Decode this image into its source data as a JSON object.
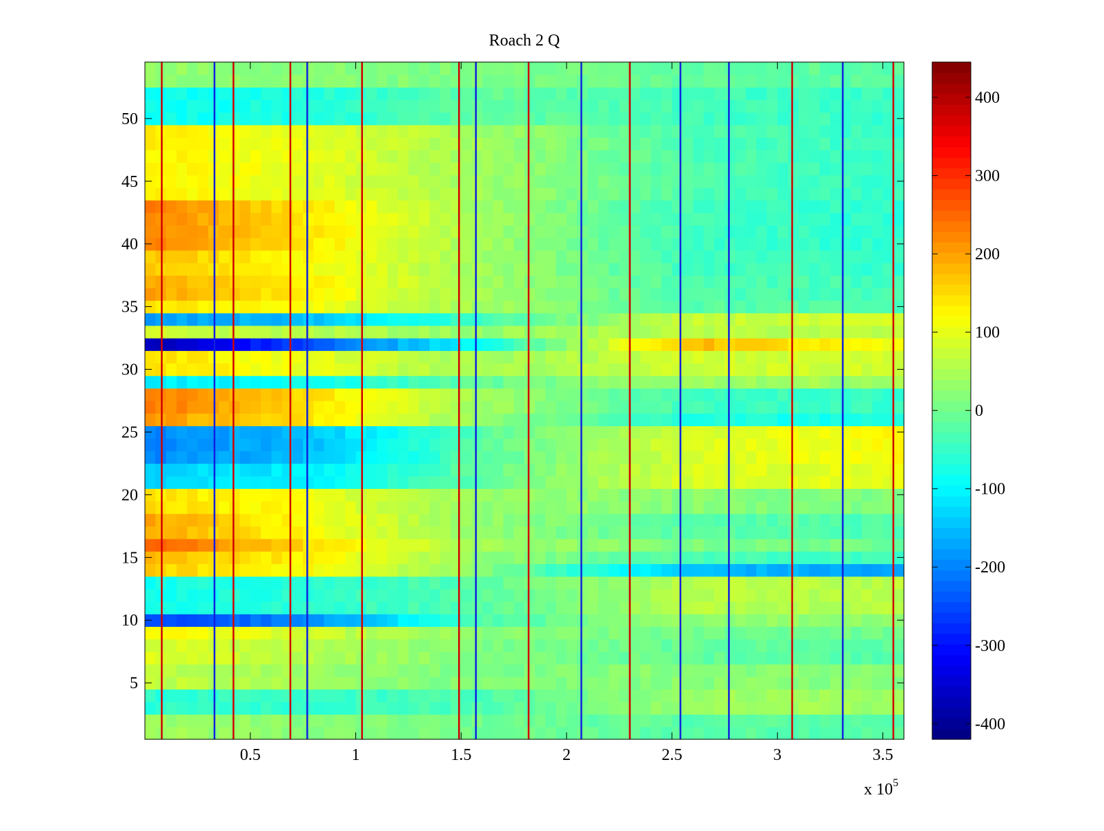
{
  "chart_data": {
    "type": "heatmap",
    "title": "Roach 2 Q",
    "xlabel": "",
    "ylabel": "",
    "x_multiplier_label": "x 10",
    "x_multiplier_exponent": "5",
    "xlim": [
      0,
      3.6
    ],
    "ylim": [
      0.5,
      54.5
    ],
    "xticks": [
      0.5,
      1,
      1.5,
      2,
      2.5,
      3,
      3.5
    ],
    "xtick_labels": [
      "0.5",
      "1",
      "1.5",
      "2",
      "2.5",
      "3",
      "3.5"
    ],
    "yticks": [
      5,
      10,
      15,
      20,
      25,
      30,
      35,
      40,
      45,
      50
    ],
    "ytick_labels": [
      "5",
      "10",
      "15",
      "20",
      "25",
      "30",
      "35",
      "40",
      "45",
      "50"
    ],
    "n_rows": 54,
    "colormap": "jet",
    "colorbar": {
      "range": [
        -420,
        445
      ],
      "ticks": [
        -400,
        -300,
        -200,
        -100,
        0,
        100,
        200,
        300,
        400
      ],
      "tick_labels": [
        "-400",
        "-300",
        "-200",
        "-100",
        "0",
        "100",
        "200",
        "300",
        "400"
      ],
      "placement": "right"
    },
    "segment_boundaries_x1e5": [
      0,
      0.08,
      0.33,
      0.42,
      0.69,
      0.77,
      1.03,
      1.49,
      1.57,
      1.82,
      2.07,
      2.3,
      2.54,
      2.77,
      3.07,
      3.31,
      3.55,
      3.6
    ],
    "boundary_line_colors": [
      "red",
      "blue",
      "red",
      "red",
      "blue",
      "red",
      "red",
      "blue",
      "red",
      "blue",
      "red",
      "blue",
      "blue",
      "red",
      "blue",
      "red"
    ],
    "row_profiles": [
      {
        "rows": [
          1,
          2
        ],
        "values": [
          40,
          20,
          0,
          -20,
          -20
        ]
      },
      {
        "rows": [
          3,
          4
        ],
        "values": [
          -60,
          -50,
          -30,
          40,
          40
        ]
      },
      {
        "rows": [
          5,
          6
        ],
        "values": [
          70,
          40,
          10,
          20,
          20
        ]
      },
      {
        "rows": [
          7,
          8
        ],
        "values": [
          90,
          60,
          10,
          -10,
          -20
        ]
      },
      {
        "rows": [
          9,
          9
        ],
        "values": [
          130,
          80,
          20,
          0,
          0
        ]
      },
      {
        "rows": [
          10,
          10
        ],
        "values": [
          -260,
          -200,
          -30,
          30,
          30
        ]
      },
      {
        "rows": [
          11,
          13
        ],
        "values": [
          -80,
          -60,
          -20,
          60,
          60
        ]
      },
      {
        "rows": [
          14,
          14
        ],
        "values": [
          160,
          120,
          20,
          -150,
          -180
        ]
      },
      {
        "rows": [
          15,
          15
        ],
        "values": [
          180,
          130,
          30,
          -30,
          -50
        ]
      },
      {
        "rows": [
          16,
          16
        ],
        "values": [
          260,
          150,
          40,
          10,
          0
        ]
      },
      {
        "rows": [
          17,
          18
        ],
        "values": [
          200,
          120,
          30,
          -20,
          -30
        ]
      },
      {
        "rows": [
          19,
          20
        ],
        "values": [
          150,
          110,
          30,
          20,
          10
        ]
      },
      {
        "rows": [
          21,
          22
        ],
        "values": [
          -130,
          -110,
          -10,
          90,
          100
        ]
      },
      {
        "rows": [
          23,
          25
        ],
        "values": [
          -200,
          -150,
          -20,
          90,
          120
        ]
      },
      {
        "rows": [
          26,
          26
        ],
        "values": [
          210,
          140,
          30,
          -70,
          -80
        ]
      },
      {
        "rows": [
          27,
          28
        ],
        "values": [
          240,
          150,
          40,
          -40,
          -50
        ]
      },
      {
        "rows": [
          29,
          29
        ],
        "values": [
          -110,
          -90,
          -10,
          40,
          40
        ]
      },
      {
        "rows": [
          30,
          31
        ],
        "values": [
          150,
          100,
          40,
          80,
          80
        ]
      },
      {
        "rows": [
          32,
          32
        ],
        "values": [
          -380,
          -250,
          -80,
          180,
          100
        ]
      },
      {
        "rows": [
          33,
          33
        ],
        "values": [
          80,
          60,
          30,
          60,
          60
        ]
      },
      {
        "rows": [
          34,
          34
        ],
        "values": [
          -180,
          -150,
          -40,
          70,
          80
        ]
      },
      {
        "rows": [
          35,
          35
        ],
        "values": [
          140,
          110,
          40,
          -20,
          -30
        ]
      },
      {
        "rows": [
          36,
          37
        ],
        "values": [
          200,
          130,
          40,
          -30,
          -40
        ]
      },
      {
        "rows": [
          38,
          39
        ],
        "values": [
          170,
          120,
          40,
          -40,
          -50
        ]
      },
      {
        "rows": [
          40,
          43
        ],
        "values": [
          230,
          140,
          40,
          -40,
          -60
        ]
      },
      {
        "rows": [
          44,
          49
        ],
        "values": [
          130,
          100,
          40,
          -30,
          -50
        ]
      },
      {
        "rows": [
          50,
          52
        ],
        "values": [
          -90,
          -70,
          -10,
          -40,
          -50
        ]
      },
      {
        "rows": [
          53,
          54
        ],
        "values": [
          30,
          20,
          10,
          -10,
          -20
        ]
      }
    ],
    "profile_x_points_x1e5": [
      0,
      0.77,
      1.6,
      2.6,
      3.6
    ],
    "grid": false
  }
}
